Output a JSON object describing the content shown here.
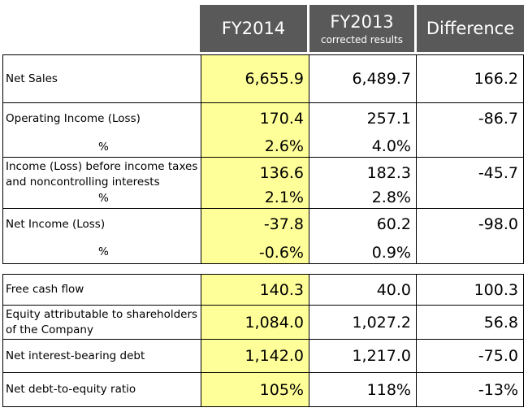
{
  "header": {
    "col1": "FY2014",
    "col2": "FY2013",
    "col2_sub": "corrected results",
    "col3": "Difference"
  },
  "table1": [
    {
      "label": "Net Sales",
      "fy2014": "6,655.9",
      "fy2013": "6,489.7",
      "diff": "166.2"
    },
    {
      "label": "Operating Income (Loss)",
      "fy2014": "170.4",
      "fy2013": "257.1",
      "diff": "-86.7",
      "pct_label": "%",
      "pct_fy2014": "2.6%",
      "pct_fy2013": "4.0%"
    },
    {
      "label_line1": "Income (Loss) before income taxes",
      "label_line2": "and noncontrolling interests",
      "fy2014": "136.6",
      "fy2013": "182.3",
      "diff": "-45.7",
      "pct_label": "%",
      "pct_fy2014": "2.1%",
      "pct_fy2013": "2.8%"
    },
    {
      "label": "Net Income (Loss)",
      "fy2014": "-37.8",
      "fy2013": "60.2",
      "diff": "-98.0",
      "pct_label": "%",
      "pct_fy2014": "-0.6%",
      "pct_fy2013": "0.9%"
    }
  ],
  "table2": [
    {
      "label": "Free cash flow",
      "fy2014": "140.3",
      "fy2013": "40.0",
      "diff": "100.3"
    },
    {
      "label_line1": "Equity attributable to shareholders",
      "label_line2": "of the Company",
      "fy2014": "1,084.0",
      "fy2013": "1,027.2",
      "diff": "56.8"
    },
    {
      "label": "Net interest-bearing debt",
      "fy2014": "1,142.0",
      "fy2013": "1,217.0",
      "diff": "-75.0"
    },
    {
      "label": "Net debt-to-equity ratio",
      "fy2014": "105%",
      "fy2013": "118%",
      "diff": "-13%"
    }
  ],
  "colors": {
    "header_bg": "#595959",
    "highlight": "#ffff99"
  }
}
